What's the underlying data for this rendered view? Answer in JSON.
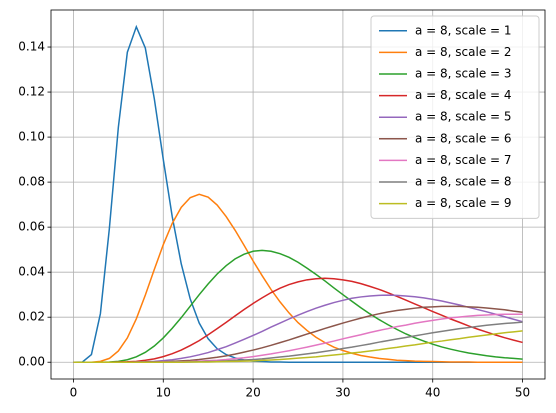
{
  "chart_data": {
    "type": "line",
    "x": [
      0,
      1,
      2,
      3,
      4,
      5,
      6,
      7,
      8,
      9,
      10,
      11,
      12,
      13,
      14,
      15,
      16,
      17,
      18,
      19,
      20,
      21,
      22,
      23,
      24,
      25,
      26,
      27,
      28,
      29,
      30,
      31,
      32,
      33,
      34,
      35,
      36,
      37,
      38,
      39,
      40,
      41,
      42,
      43,
      44,
      45,
      46,
      47,
      48,
      49,
      50
    ],
    "series": [
      {
        "name": "a = 8, scale = 1",
        "color": "#1f77b4",
        "values": [
          0,
          0.0001,
          0.0034,
          0.0216,
          0.0595,
          0.1044,
          0.1377,
          0.149,
          0.1396,
          0.1171,
          0.0901,
          0.0646,
          0.0437,
          0.0281,
          0.0174,
          0.0104,
          0.006,
          0.0034,
          0.0019,
          0.001,
          0.0005,
          0.0003,
          0.0001,
          0.0001,
          0,
          0,
          0,
          0,
          0,
          0,
          0,
          0,
          0,
          0,
          0,
          0,
          0,
          0,
          0,
          0,
          0,
          0,
          0,
          0,
          0,
          0,
          0,
          0,
          0,
          0,
          0
        ]
      },
      {
        "name": "a = 8, scale = 2",
        "color": "#ff7f0e",
        "values": [
          0,
          0,
          0,
          0.0004,
          0.0017,
          0.005,
          0.0108,
          0.0193,
          0.0298,
          0.0412,
          0.0522,
          0.0617,
          0.0688,
          0.0731,
          0.0746,
          0.0733,
          0.0698,
          0.0647,
          0.0586,
          0.0519,
          0.045,
          0.0385,
          0.0323,
          0.0268,
          0.0219,
          0.0176,
          0.0141,
          0.0111,
          0.0087,
          0.0067,
          0.0052,
          0.004,
          0.003,
          0.0023,
          0.0017,
          0.0013,
          0.0009,
          0.0007,
          0.0005,
          0.0004,
          0.0003,
          0.0002,
          0.0001,
          0.0001,
          0.0001,
          0,
          0,
          0,
          0,
          0,
          0
        ]
      },
      {
        "name": "a = 8, scale = 3",
        "color": "#2ca02c",
        "values": [
          0,
          0,
          0,
          0,
          0.0001,
          0.0004,
          0.0011,
          0.0024,
          0.0044,
          0.0072,
          0.0108,
          0.0151,
          0.0198,
          0.0249,
          0.03,
          0.0348,
          0.0392,
          0.0429,
          0.0459,
          0.048,
          0.0493,
          0.0497,
          0.0493,
          0.0482,
          0.0466,
          0.0444,
          0.0418,
          0.039,
          0.0361,
          0.033,
          0.03,
          0.0271,
          0.0242,
          0.0215,
          0.019,
          0.0167,
          0.0146,
          0.0126,
          0.0109,
          0.0094,
          0.008,
          0.0068,
          0.0058,
          0.0049,
          0.0041,
          0.0035,
          0.0029,
          0.0024,
          0.002,
          0.0017,
          0.0014
        ]
      },
      {
        "name": "a = 8, scale = 4",
        "color": "#d62728",
        "values": [
          0,
          0,
          0,
          0,
          0,
          0.0001,
          0.0002,
          0.0004,
          0.0009,
          0.0015,
          0.0025,
          0.0038,
          0.0054,
          0.0074,
          0.0096,
          0.0122,
          0.0149,
          0.0177,
          0.0206,
          0.0234,
          0.0261,
          0.0286,
          0.0309,
          0.0329,
          0.0345,
          0.0357,
          0.0366,
          0.0371,
          0.0373,
          0.0371,
          0.0366,
          0.0359,
          0.0349,
          0.0337,
          0.0324,
          0.0309,
          0.0293,
          0.0276,
          0.0259,
          0.0242,
          0.0225,
          0.0209,
          0.0192,
          0.0177,
          0.0161,
          0.0147,
          0.0134,
          0.0121,
          0.0109,
          0.0098,
          0.0088
        ]
      },
      {
        "name": "a = 8, scale = 5",
        "color": "#9467bd",
        "values": [
          0,
          0,
          0,
          0,
          0,
          0,
          0,
          0.0001,
          0.0002,
          0.0004,
          0.0007,
          0.0011,
          0.0017,
          0.0024,
          0.0033,
          0.0043,
          0.0056,
          0.0069,
          0.0085,
          0.0102,
          0.0119,
          0.0137,
          0.0156,
          0.0174,
          0.0192,
          0.0209,
          0.0225,
          0.024,
          0.0253,
          0.0265,
          0.0275,
          0.0284,
          0.029,
          0.0294,
          0.0297,
          0.0298,
          0.0297,
          0.0294,
          0.0291,
          0.0286,
          0.0279,
          0.0272,
          0.0263,
          0.0254,
          0.0244,
          0.0234,
          0.0224,
          0.0213,
          0.0202,
          0.0191,
          0.018
        ]
      },
      {
        "name": "a = 8, scale = 6",
        "color": "#8c564b",
        "values": [
          0,
          0,
          0,
          0,
          0,
          0,
          0,
          0,
          0.0001,
          0.0001,
          0.0002,
          0.0004,
          0.0006,
          0.0008,
          0.0012,
          0.0017,
          0.0022,
          0.0028,
          0.0036,
          0.0045,
          0.0054,
          0.0064,
          0.0075,
          0.0087,
          0.0099,
          0.0112,
          0.0125,
          0.0137,
          0.015,
          0.0162,
          0.0174,
          0.0185,
          0.0196,
          0.0206,
          0.0215,
          0.0223,
          0.023,
          0.0235,
          0.024,
          0.0244,
          0.0246,
          0.0248,
          0.0248,
          0.0248,
          0.0246,
          0.0244,
          0.0241,
          0.0237,
          0.0233,
          0.0227,
          0.0222
        ]
      },
      {
        "name": "a = 8, scale = 7",
        "color": "#e377c2",
        "values": [
          0,
          0,
          0,
          0,
          0,
          0,
          0,
          0,
          0,
          0,
          0.0001,
          0.0001,
          0.0002,
          0.0003,
          0.0005,
          0.0007,
          0.0009,
          0.0012,
          0.0016,
          0.002,
          0.0025,
          0.0031,
          0.0037,
          0.0044,
          0.0051,
          0.0059,
          0.0067,
          0.0076,
          0.0085,
          0.0094,
          0.0104,
          0.0113,
          0.0122,
          0.0132,
          0.0141,
          0.0149,
          0.0158,
          0.0165,
          0.0173,
          0.018,
          0.0186,
          0.0192,
          0.0197,
          0.0201,
          0.0205,
          0.0208,
          0.021,
          0.0212,
          0.0213,
          0.0213,
          0.0213
        ]
      },
      {
        "name": "a = 8, scale = 8",
        "color": "#7f7f7f",
        "values": [
          0,
          0,
          0,
          0,
          0,
          0,
          0,
          0,
          0,
          0,
          0,
          0.0001,
          0.0001,
          0.0001,
          0.0002,
          0.0003,
          0.0004,
          0.0006,
          0.0008,
          0.001,
          0.0012,
          0.0015,
          0.0019,
          0.0023,
          0.0027,
          0.0032,
          0.0037,
          0.0042,
          0.0048,
          0.0054,
          0.0061,
          0.0067,
          0.0074,
          0.0081,
          0.0089,
          0.0096,
          0.0103,
          0.011,
          0.0117,
          0.0124,
          0.0131,
          0.0137,
          0.0143,
          0.0149,
          0.0154,
          0.0159,
          0.0164,
          0.0168,
          0.0172,
          0.0175,
          0.0178
        ]
      },
      {
        "name": "a = 8, scale = 9",
        "color": "#bcbd22",
        "values": [
          0,
          0,
          0,
          0,
          0,
          0,
          0,
          0,
          0,
          0,
          0,
          0,
          0,
          0.0001,
          0.0001,
          0.0001,
          0.0002,
          0.0003,
          0.0004,
          0.0005,
          0.0006,
          0.0008,
          0.001,
          0.0012,
          0.0015,
          0.0018,
          0.0021,
          0.0024,
          0.0028,
          0.0032,
          0.0036,
          0.0041,
          0.0045,
          0.005,
          0.0055,
          0.0061,
          0.0066,
          0.0072,
          0.0077,
          0.0083,
          0.0089,
          0.0094,
          0.01,
          0.0105,
          0.0111,
          0.0116,
          0.0121,
          0.0126,
          0.0131,
          0.0135,
          0.0139
        ]
      }
    ],
    "xlim": [
      -2.5,
      52.5
    ],
    "xticks": [
      0,
      10,
      20,
      30,
      40,
      50
    ],
    "ylim": [
      -0.00745,
      0.15645
    ],
    "yticks": [
      {
        "value": 0,
        "label": "0.00"
      },
      {
        "value": 0.02,
        "label": "0.02"
      },
      {
        "value": 0.04,
        "label": "0.04"
      },
      {
        "value": 0.06,
        "label": "0.06"
      },
      {
        "value": 0.08,
        "label": "0.08"
      },
      {
        "value": 0.1,
        "label": "0.10"
      },
      {
        "value": 0.12,
        "label": "0.12"
      },
      {
        "value": 0.14,
        "label": "0.14"
      }
    ],
    "grid": true,
    "legend": "upper-right"
  }
}
